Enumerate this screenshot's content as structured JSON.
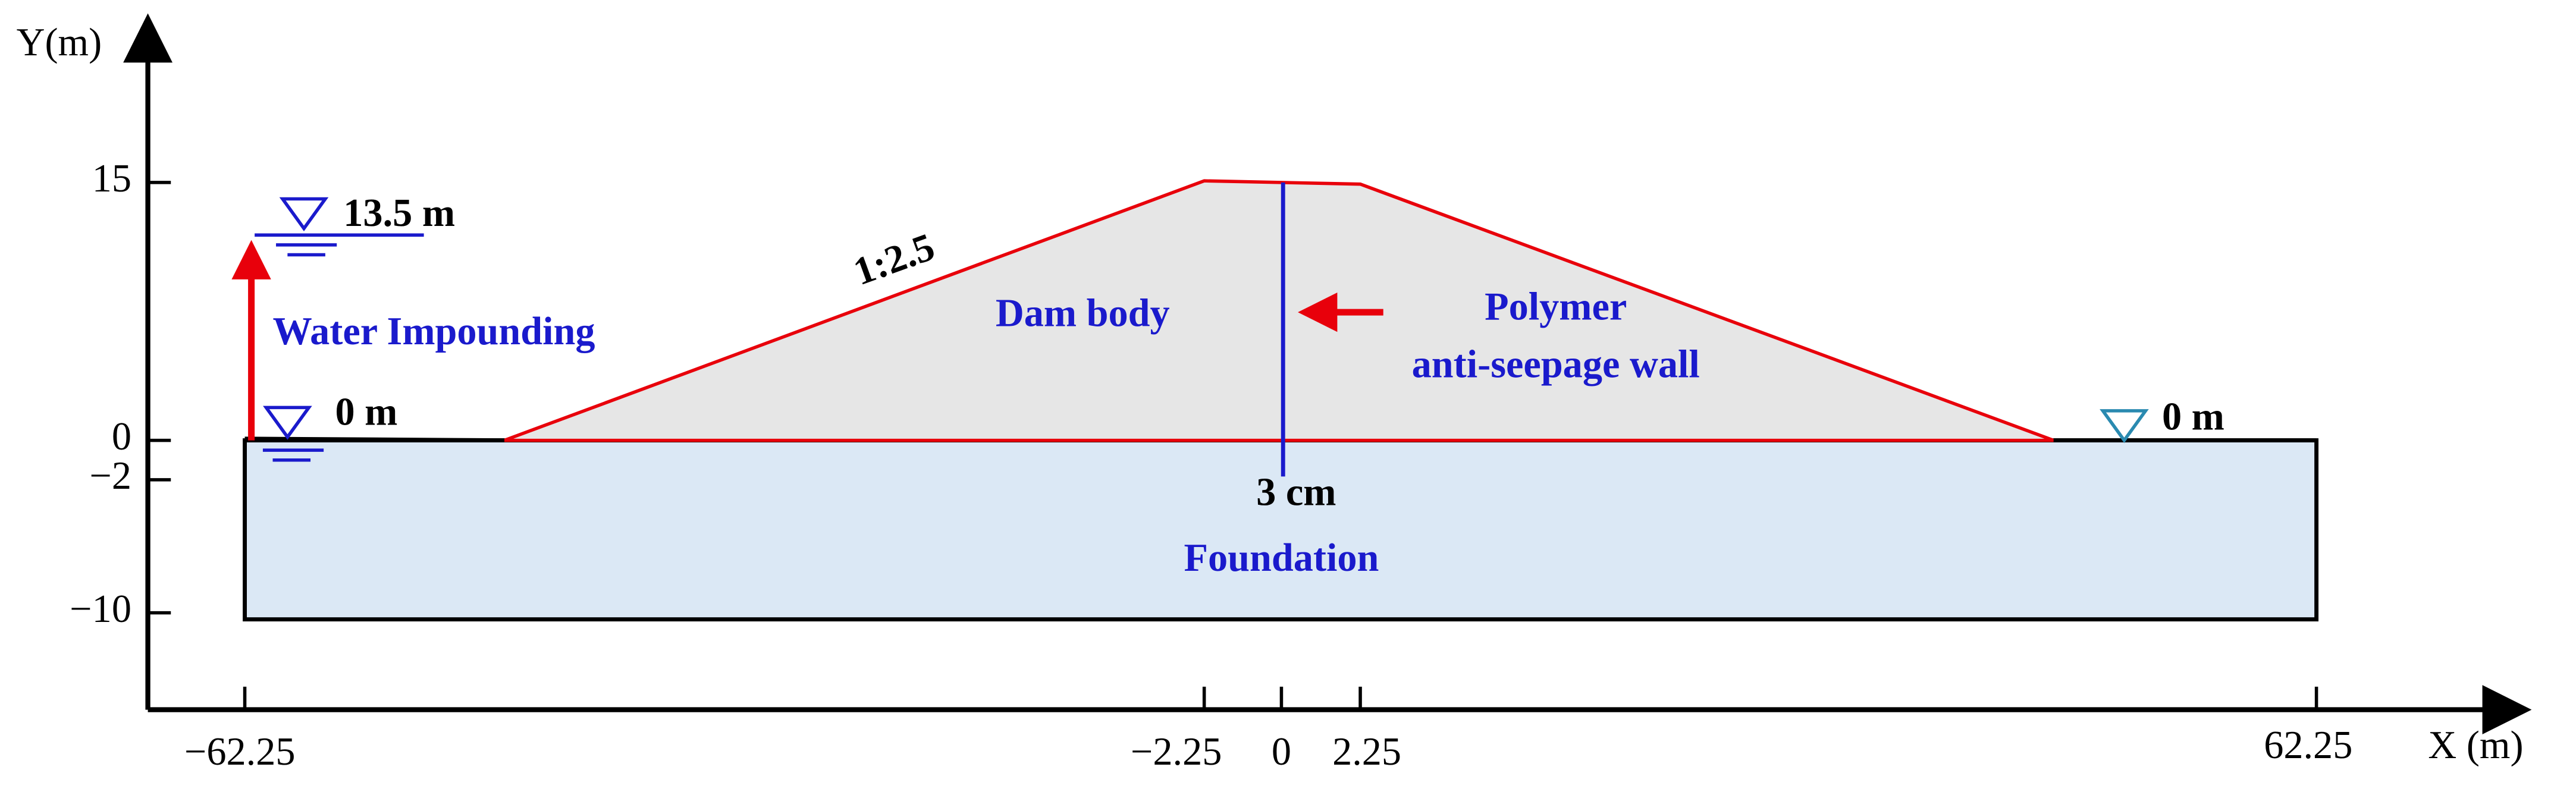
{
  "axes": {
    "y_label": "Y(m)",
    "x_label": "X (m)",
    "y_ticks": [
      "15",
      "0",
      "−2",
      "−10"
    ],
    "x_ticks": [
      "−62.25",
      "−2.25",
      "0",
      "2.25",
      "62.25"
    ]
  },
  "annotations": {
    "upstream_level": "13.5 m",
    "impounding": "Water Impounding",
    "upstream_zero": "0 m",
    "slope": "1:2.5",
    "dam_body": "Dam body",
    "wall_line1": "Polymer",
    "wall_line2": "anti-seepage wall",
    "wall_thickness": "3 cm",
    "foundation": "Foundation",
    "downstream_zero": "0 m"
  }
}
